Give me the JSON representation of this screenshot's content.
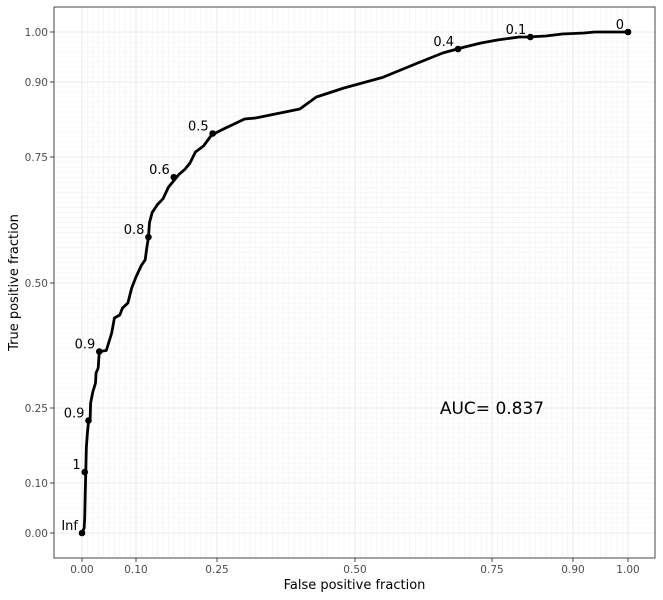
{
  "chart_data": {
    "type": "line",
    "xlabel": "False positive fraction",
    "ylabel": "True positive fraction",
    "xlim": [
      0,
      1
    ],
    "ylim": [
      0,
      1
    ],
    "x_ticks": [
      {
        "value": 0.0,
        "label": "0.00"
      },
      {
        "value": 0.1,
        "label": "0.10"
      },
      {
        "value": 0.25,
        "label": "0.25"
      },
      {
        "value": 0.5,
        "label": "0.50"
      },
      {
        "value": 0.75,
        "label": "0.75"
      },
      {
        "value": 0.9,
        "label": "0.90"
      },
      {
        "value": 1.0,
        "label": "1.00"
      }
    ],
    "y_ticks": [
      {
        "value": 0.0,
        "label": "0.00"
      },
      {
        "value": 0.1,
        "label": "0.10"
      },
      {
        "value": 0.25,
        "label": "0.25"
      },
      {
        "value": 0.5,
        "label": "0.50"
      },
      {
        "value": 0.75,
        "label": "0.75"
      },
      {
        "value": 0.9,
        "label": "0.90"
      },
      {
        "value": 1.0,
        "label": "1.00"
      }
    ],
    "grid": true,
    "series": [
      {
        "values": [
          [
            0.0,
            0.0
          ],
          [
            0.004,
            0.01
          ],
          [
            0.005,
            0.03
          ],
          [
            0.006,
            0.08
          ],
          [
            0.007,
            0.122
          ],
          [
            0.008,
            0.17
          ],
          [
            0.01,
            0.2
          ],
          [
            0.012,
            0.222
          ],
          [
            0.015,
            0.226
          ],
          [
            0.016,
            0.26
          ],
          [
            0.02,
            0.282
          ],
          [
            0.025,
            0.3
          ],
          [
            0.026,
            0.32
          ],
          [
            0.03,
            0.33
          ],
          [
            0.032,
            0.363
          ],
          [
            0.045,
            0.365
          ],
          [
            0.055,
            0.4
          ],
          [
            0.06,
            0.43
          ],
          [
            0.07,
            0.436
          ],
          [
            0.075,
            0.45
          ],
          [
            0.085,
            0.46
          ],
          [
            0.092,
            0.49
          ],
          [
            0.1,
            0.512
          ],
          [
            0.11,
            0.535
          ],
          [
            0.117,
            0.546
          ],
          [
            0.12,
            0.57
          ],
          [
            0.123,
            0.59
          ],
          [
            0.125,
            0.62
          ],
          [
            0.13,
            0.64
          ],
          [
            0.14,
            0.656
          ],
          [
            0.15,
            0.667
          ],
          [
            0.16,
            0.69
          ],
          [
            0.17,
            0.703
          ],
          [
            0.18,
            0.716
          ],
          [
            0.19,
            0.725
          ],
          [
            0.2,
            0.738
          ],
          [
            0.21,
            0.76
          ],
          [
            0.225,
            0.772
          ],
          [
            0.24,
            0.794
          ],
          [
            0.26,
            0.805
          ],
          [
            0.3,
            0.826
          ],
          [
            0.32,
            0.828
          ],
          [
            0.4,
            0.846
          ],
          [
            0.43,
            0.87
          ],
          [
            0.48,
            0.888
          ],
          [
            0.55,
            0.909
          ],
          [
            0.61,
            0.936
          ],
          [
            0.66,
            0.958
          ],
          [
            0.68,
            0.964
          ],
          [
            0.7,
            0.97
          ],
          [
            0.73,
            0.978
          ],
          [
            0.76,
            0.984
          ],
          [
            0.8,
            0.99
          ],
          [
            0.816,
            0.99
          ],
          [
            0.85,
            0.992
          ],
          [
            0.88,
            0.996
          ],
          [
            0.92,
            0.998
          ],
          [
            0.94,
            1.0
          ],
          [
            0.99,
            1.0
          ],
          [
            1.0,
            1.0
          ]
        ]
      }
    ],
    "threshold_points": [
      {
        "label": "Inf",
        "x": 0.0,
        "y": 0.0
      },
      {
        "label": "1",
        "x": 0.005,
        "y": 0.122
      },
      {
        "label": "0.9",
        "x": 0.012,
        "y": 0.225
      },
      {
        "label": "0.9",
        "x": 0.032,
        "y": 0.363
      },
      {
        "label": "0.8",
        "x": 0.123,
        "y": 0.591
      },
      {
        "label": "0.6",
        "x": 0.17,
        "y": 0.71
      },
      {
        "label": "0.5",
        "x": 0.242,
        "y": 0.797
      },
      {
        "label": "0.4",
        "x": 0.688,
        "y": 0.966
      },
      {
        "label": "0.1",
        "x": 0.821,
        "y": 0.99
      },
      {
        "label": "0",
        "x": 1.0,
        "y": 1.0
      }
    ],
    "annotations": [
      {
        "text": "AUC= 0.837",
        "x": 0.75,
        "y": 0.25
      }
    ]
  }
}
